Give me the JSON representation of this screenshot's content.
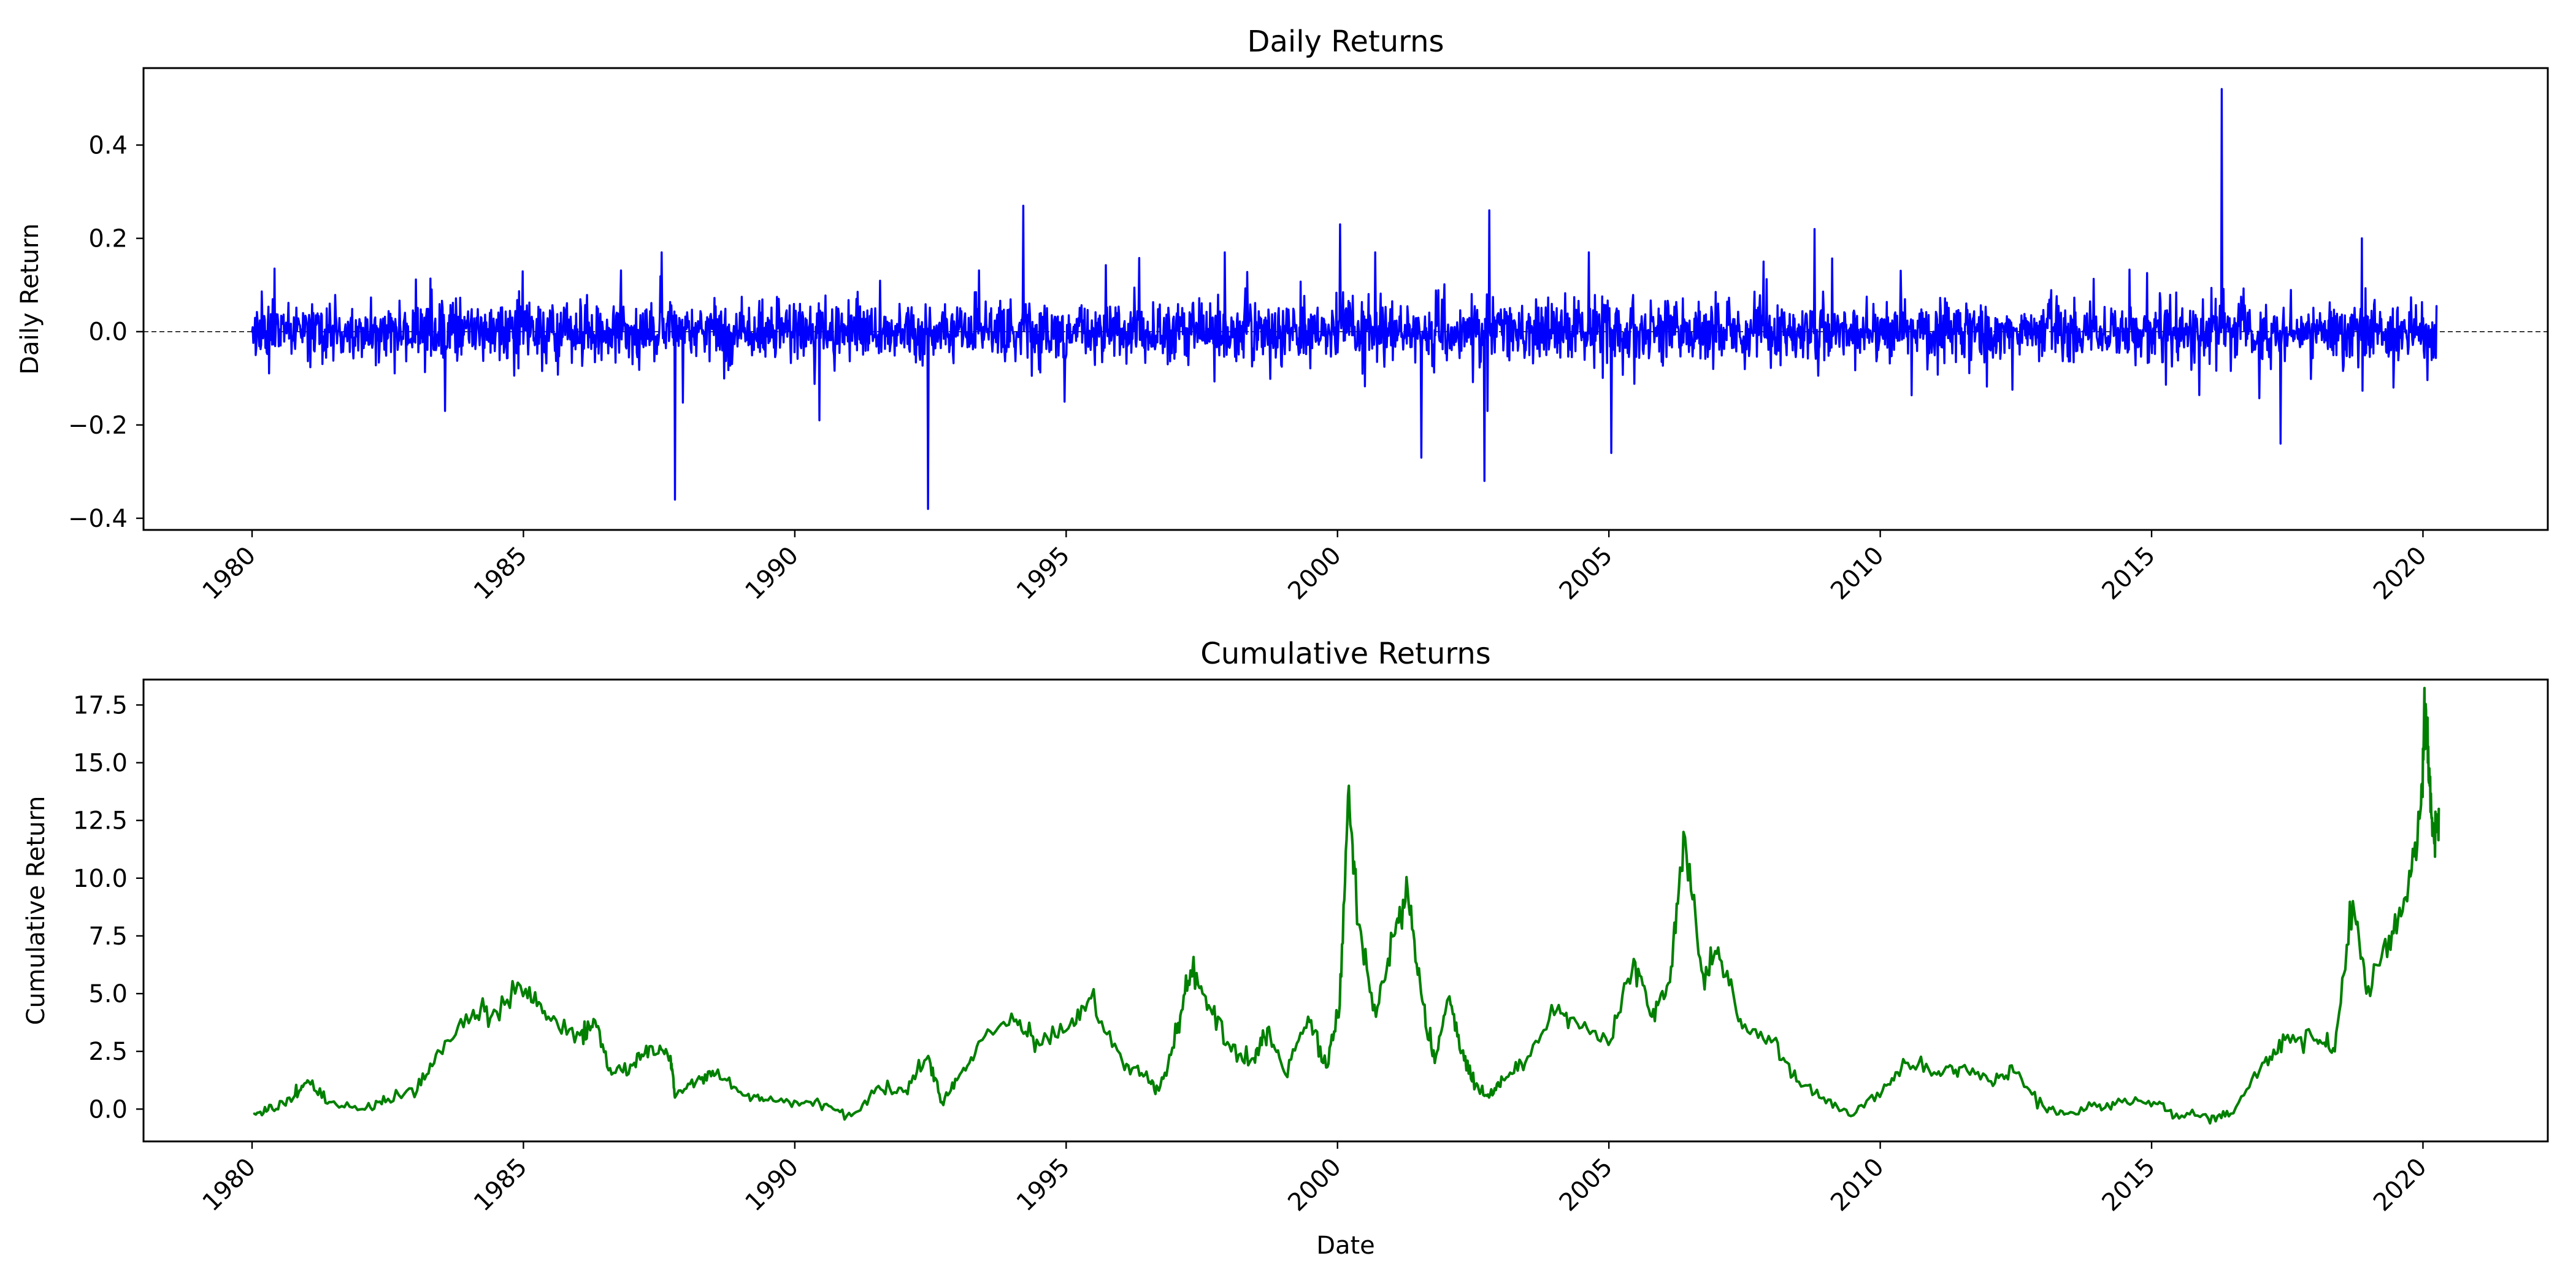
{
  "colors": {
    "daily": "#0000ff",
    "cumulative": "#008000",
    "axis": "#000000",
    "background": "#ffffff"
  },
  "chart_data": [
    {
      "type": "line",
      "title": "Daily Returns",
      "xlabel": "",
      "ylabel": "Daily Return",
      "xlim": [
        1978.0,
        2022.3
      ],
      "ylim": [
        -0.425,
        0.565
      ],
      "xticks": [
        1980,
        1985,
        1990,
        1995,
        2000,
        2005,
        2010,
        2015,
        2020
      ],
      "xtick_labels": [
        "1980",
        "1985",
        "1990",
        "1995",
        "2000",
        "2005",
        "2010",
        "2015",
        "2020"
      ],
      "yticks": [
        -0.4,
        -0.2,
        0.0,
        0.2,
        0.4
      ],
      "ytick_labels": [
        "−0.4",
        "−0.2",
        "0.0",
        "0.2",
        "0.4"
      ],
      "reference_line": {
        "y": 0.0,
        "style": "dashed"
      },
      "grid": false,
      "series": [
        {
          "color": "#0000ff",
          "style": "dense daily noise, approx. ±0.05 to ±0.10 band",
          "x_range": [
            1980.0,
            2020.25
          ],
          "notable_points": [
            {
              "x": "1987-10",
              "y": -0.36
            },
            {
              "x": "1990-06",
              "y": -0.19
            },
            {
              "x": "1992-06",
              "y": -0.38
            },
            {
              "x": "1994-03",
              "y": 0.27
            },
            {
              "x": "2000-01",
              "y": 0.23
            },
            {
              "x": "2001-07",
              "y": -0.27
            },
            {
              "x": "2002-10",
              "y": 0.26
            },
            {
              "x": "2002-09",
              "y": -0.32
            },
            {
              "x": "2005-01",
              "y": -0.26
            },
            {
              "x": "2008-10",
              "y": 0.22
            },
            {
              "x": "2016-04",
              "y": 0.52
            },
            {
              "x": "2017-05",
              "y": -0.24
            },
            {
              "x": "2018-11",
              "y": 0.2
            }
          ]
        }
      ]
    },
    {
      "type": "line",
      "title": "Cumulative Returns",
      "xlabel": "Date",
      "ylabel": "Cumulative Return",
      "xlim": [
        1978.0,
        2022.3
      ],
      "ylim": [
        -1.4,
        18.6
      ],
      "xticks": [
        1980,
        1985,
        1990,
        1995,
        2000,
        2005,
        2010,
        2015,
        2020
      ],
      "xtick_labels": [
        "1980",
        "1985",
        "1990",
        "1995",
        "2000",
        "2005",
        "2010",
        "2015",
        "2020"
      ],
      "yticks": [
        0.0,
        2.5,
        5.0,
        7.5,
        10.0,
        12.5,
        15.0,
        17.5
      ],
      "ytick_labels": [
        "0.0",
        "2.5",
        "5.0",
        "7.5",
        "10.0",
        "12.5",
        "15.0",
        "17.5"
      ],
      "grid": false,
      "series": [
        {
          "color": "#008000",
          "x": [
            "1980-01",
            "1980-05",
            "1980-10",
            "1981-01",
            "1981-06",
            "1982-01",
            "1982-06",
            "1983-01",
            "1983-06",
            "1984-01",
            "1984-06",
            "1985-01",
            "1985-06",
            "1986-01",
            "1986-04",
            "1986-08",
            "1987-01",
            "1987-05",
            "1987-09",
            "1987-10",
            "1988-03",
            "1988-07",
            "1989-01",
            "1989-06",
            "1990-01",
            "1990-07",
            "1991-01",
            "1991-07",
            "1992-01",
            "1992-06",
            "1992-09",
            "1993-01",
            "1993-06",
            "1994-01",
            "1994-06",
            "1995-01",
            "1995-06",
            "1996-01",
            "1996-06",
            "1996-09",
            "1997-01",
            "1997-04",
            "1997-08",
            "1998-01",
            "1998-06",
            "1998-09",
            "1999-01",
            "1999-06",
            "1999-10",
            "2000-01",
            "2000-03",
            "2000-05",
            "2000-09",
            "2001-01",
            "2001-04",
            "2001-07",
            "2001-10",
            "2002-01",
            "2002-04",
            "2002-07",
            "2002-10",
            "2003-01",
            "2003-06",
            "2004-01",
            "2004-06",
            "2005-01",
            "2005-06",
            "2005-10",
            "2006-02",
            "2006-05",
            "2006-09",
            "2007-01",
            "2007-06",
            "2008-01",
            "2008-06",
            "2008-12",
            "2009-06",
            "2010-01",
            "2010-06",
            "2011-01",
            "2011-06",
            "2012-01",
            "2012-06",
            "2013-01",
            "2013-06",
            "2014-01",
            "2014-06",
            "2015-01",
            "2015-06",
            "2016-01",
            "2016-06",
            "2017-01",
            "2017-06",
            "2018-01",
            "2018-05",
            "2018-09",
            "2018-12",
            "2019-05",
            "2019-09",
            "2019-12",
            "2020-01",
            "2020-02",
            "2020-03",
            "2020-04"
          ],
          "y": [
            -0.2,
            0.0,
            0.6,
            1.2,
            0.3,
            0.0,
            0.3,
            0.8,
            2.5,
            4.0,
            4.3,
            5.2,
            4.0,
            3.2,
            3.9,
            1.5,
            2.0,
            2.7,
            2.3,
            0.5,
            1.3,
            1.5,
            0.6,
            0.4,
            0.3,
            0.2,
            -0.3,
            1.0,
            0.8,
            2.3,
            0.3,
            1.5,
            3.0,
            3.8,
            3.0,
            3.5,
            4.8,
            2.0,
            1.5,
            0.8,
            3.3,
            6.0,
            4.5,
            2.5,
            2.2,
            3.5,
            1.5,
            4.0,
            1.8,
            4.5,
            14.0,
            8.0,
            4.0,
            7.5,
            9.5,
            5.0,
            2.0,
            4.8,
            2.5,
            1.0,
            0.5,
            1.3,
            2.0,
            4.3,
            3.5,
            3.0,
            6.5,
            4.0,
            5.5,
            12.0,
            6.0,
            6.5,
            3.5,
            3.0,
            1.2,
            0.5,
            -0.3,
            0.8,
            2.0,
            1.5,
            1.8,
            1.2,
            1.6,
            0.0,
            -0.2,
            0.2,
            0.3,
            0.3,
            -0.2,
            -0.4,
            -0.2,
            2.0,
            3.0,
            3.0,
            2.5,
            9.0,
            5.0,
            7.5,
            9.0,
            13.0,
            17.5,
            14.0,
            11.5,
            13.0
          ]
        }
      ]
    }
  ]
}
